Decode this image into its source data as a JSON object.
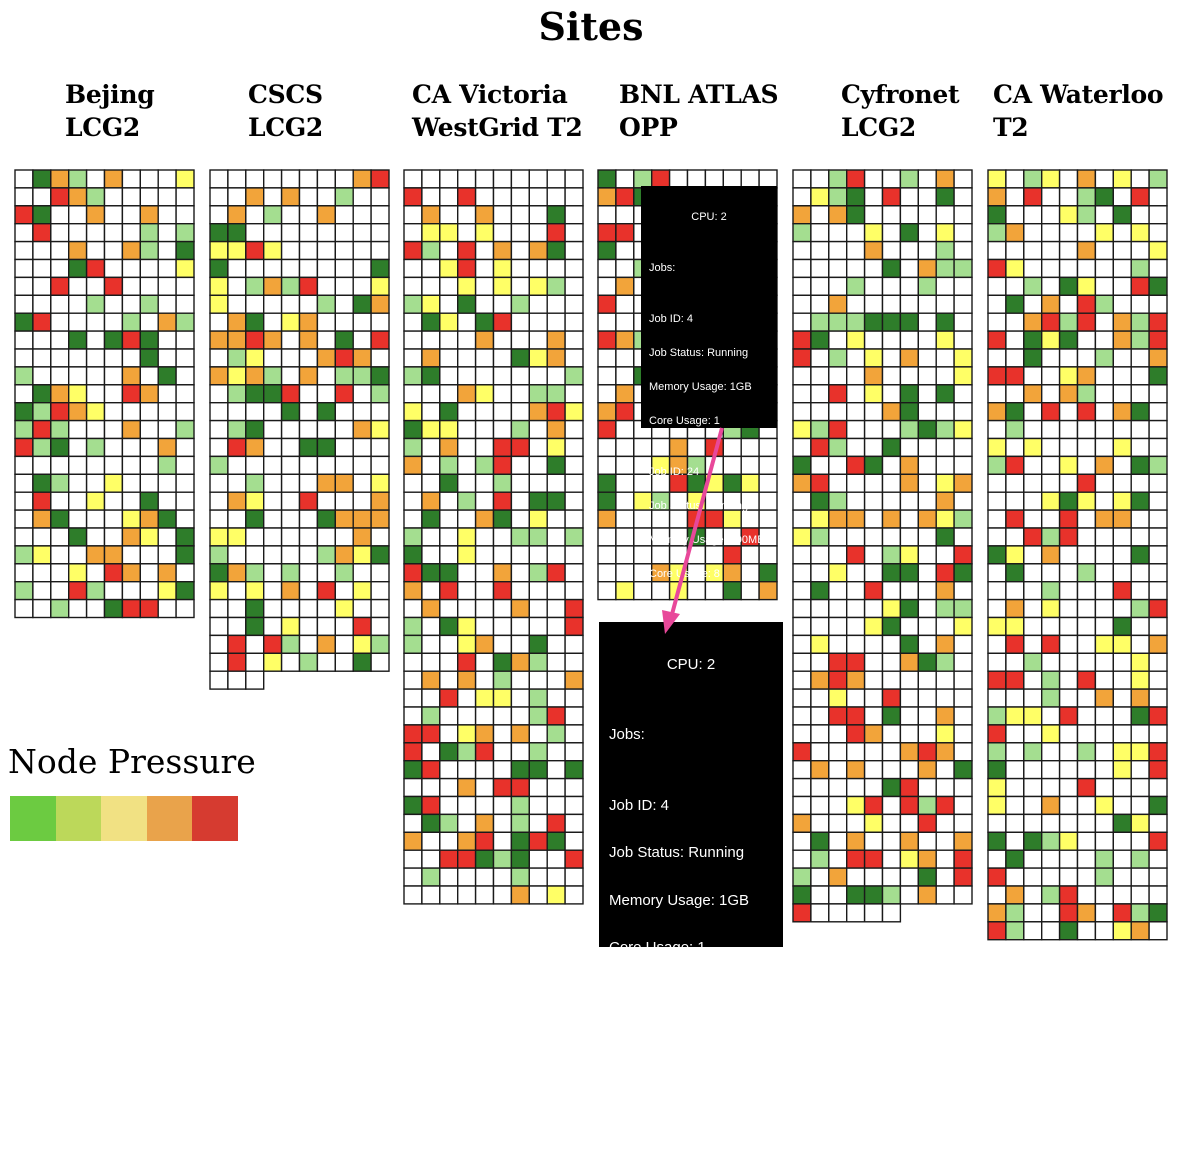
{
  "title": "Sites",
  "legend": {
    "title": "Node Pressure",
    "colors": [
      "#6ccb41",
      "#bcd85a",
      "#f1e183",
      "#e9a34b",
      "#d63b30"
    ]
  },
  "palette": {
    "dark_green": "#2e7d2a",
    "light_green": "#a4de90",
    "yellow": "#ffff66",
    "orange": "#f2a43a",
    "red": "#e8322b",
    "empty": "#ffffff"
  },
  "sites": [
    {
      "name": "Bejing\nLCG2",
      "rows": 25,
      "last_row_cells": 10,
      "seed": 11
    },
    {
      "name": "CSCS\nLCG2",
      "rows": 29,
      "last_row_cells": 3,
      "seed": 23
    },
    {
      "name": "CA Victoria\nWestGrid T2",
      "rows": 41,
      "last_row_cells": 10,
      "seed": 37
    },
    {
      "name": "BNL ATLAS\nOPP",
      "rows": 24,
      "last_row_cells": 10,
      "seed": 51
    },
    {
      "name": "Cyfronet\nLCG2",
      "rows": 42,
      "last_row_cells": 6,
      "seed": 67
    },
    {
      "name": "CA Waterloo\nT2",
      "rows": 43,
      "last_row_cells": 10,
      "seed": 83
    }
  ],
  "tooltip": {
    "cpu": "CPU: 2",
    "jobs_label": "Jobs:",
    "jobs": [
      {
        "id": "Job ID: 4",
        "status": "Job Status: Running",
        "memory": "Memory Usage: 1GB",
        "cores": "Core Usage: 1"
      },
      {
        "id": "Job ID: 24",
        "status": "Job Status: Running",
        "memory": "Memory Usage: 100MB",
        "cores": "Core Usage: 8"
      }
    ]
  }
}
